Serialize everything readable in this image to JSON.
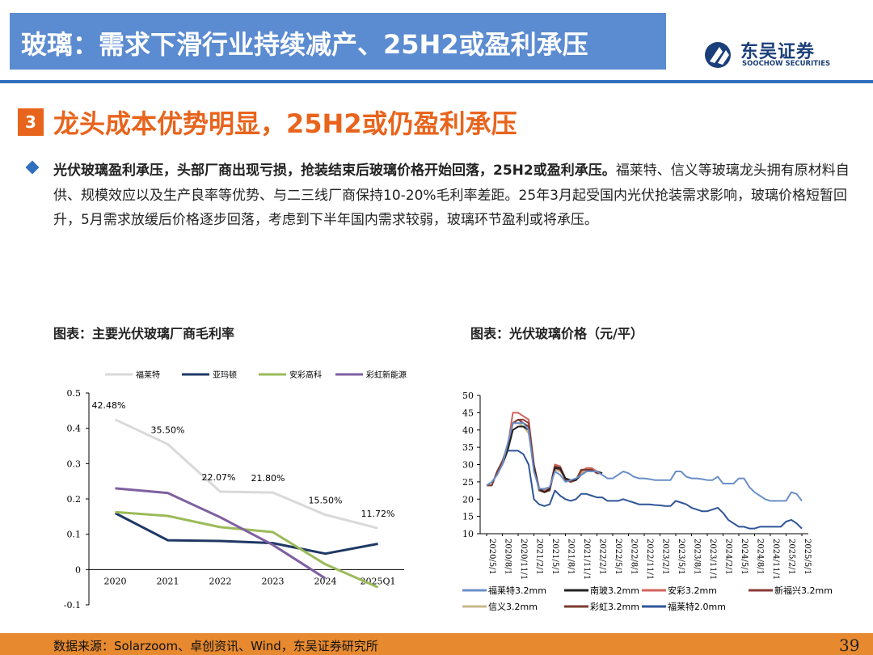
{
  "header": {
    "title": "玻璃：需求下滑行业持续减产、25H2或盈利承压",
    "logo_cn": "东吴证券",
    "logo_en": "SOOCHOW SECURITIES"
  },
  "section": {
    "number": "3",
    "title": "龙头成本优势明显，25H2或仍盈利承压"
  },
  "body": {
    "bold_text": "光伏玻璃盈利承压，头部厂商出现亏损，抢装结束后玻璃价格开始回落，25H2或盈利承压。",
    "normal_text": "福莱特、信义等玻璃龙头拥有原材料自供、规模效应以及生产良率等优势、与二三线厂商保持10-20%毛利率差距。25年3月起受国内光伏抢装需求影响，玻璃价格短暂回升，5月需求放缓后价格逐步回落，考虑到下半年国内需求较弱，玻璃环节盈利或将承压。"
  },
  "charts": {
    "left_caption": "图表：主要光伏玻璃厂商毛利率",
    "right_caption": "图表：光伏玻璃价格（元/平）"
  },
  "footer": {
    "source": "数据来源：Solarzoom、卓创资讯、Wind，东吴证券研究所",
    "page": "39"
  },
  "colors": {
    "title_bar": "#5b8bd0",
    "accent_orange": "#e8641c",
    "rule_blue": "#2f6fbe",
    "bottom_bar": "#e6892f"
  },
  "chart_data": [
    {
      "type": "line",
      "title": "图表：主要光伏玻璃厂商毛利率",
      "categories": [
        "2020",
        "2021",
        "2022",
        "2023",
        "2024",
        "2025Q1"
      ],
      "ylim": [
        -0.1,
        0.5
      ],
      "yticks": [
        "-0.1",
        "0",
        "0.1",
        "0.2",
        "0.3",
        "0.4",
        "0.5"
      ],
      "legend_position": "top",
      "series": [
        {
          "name": "福莱特",
          "color": "#d9d9d9",
          "values": [
            0.4248,
            0.355,
            0.2207,
            0.218,
            0.155,
            0.1172
          ],
          "labels": [
            "42.48%",
            "35.50%",
            "22.07%",
            "21.80%",
            "15.50%",
            "11.72%"
          ]
        },
        {
          "name": "亚玛顿",
          "color": "#1f3864",
          "values": [
            0.16,
            0.083,
            0.081,
            0.075,
            0.045,
            0.073
          ]
        },
        {
          "name": "安彩高科",
          "color": "#9bbb59",
          "values": [
            0.163,
            0.152,
            0.12,
            0.106,
            0.015,
            -0.05
          ]
        },
        {
          "name": "彩虹新能源",
          "color": "#7f5fa0",
          "values": [
            0.23,
            0.217,
            0.148,
            0.07,
            -0.025,
            null
          ]
        }
      ]
    },
    {
      "type": "line",
      "title": "图表：光伏玻璃价格（元/平）",
      "ylim": [
        10,
        50
      ],
      "yticks": [
        "10",
        "15",
        "20",
        "25",
        "30",
        "35",
        "40",
        "45",
        "50"
      ],
      "x_tick_labels": [
        "2020/5/1",
        "2020/8/1",
        "2020/11/1",
        "2021/2/1",
        "2021/5/1",
        "2021/8/1",
        "2021/11/1",
        "2022/2/1",
        "2022/5/1",
        "2022/8/1",
        "2022/11/1",
        "2023/2/1",
        "2023/5/1",
        "2023/8/1",
        "2023/11/1",
        "2024/2/1",
        "2024/5/1",
        "2024/8/1",
        "2024/11/1",
        "2025/2/1",
        "2025/5/1"
      ],
      "legend_position": "bottom",
      "series": [
        {
          "name": "福莱特3.2mm",
          "color": "#6a8fc9",
          "values": [
            24,
            25,
            27,
            30,
            36,
            42,
            42,
            42,
            40,
            28,
            23,
            23,
            23.5,
            28,
            27,
            25,
            25.5,
            26,
            27,
            28,
            28,
            28,
            27,
            26,
            26,
            27,
            28,
            27.5,
            26.5,
            26,
            26,
            25.8,
            25.5,
            25.5,
            25.5,
            25.5,
            28,
            28,
            26.5,
            26,
            26,
            25.8,
            25.5,
            25.5,
            26.5,
            24.5,
            24.5,
            24.5,
            26,
            26,
            23.5,
            22,
            21,
            20,
            19.5,
            19.5,
            19.5,
            19.5,
            22,
            21.5,
            19.5
          ]
        },
        {
          "name": "南玻3.2mm",
          "color": "#222222",
          "values": [
            null,
            null,
            null,
            30,
            34,
            40,
            41,
            41,
            40,
            29,
            23,
            22,
            23,
            29,
            29,
            26,
            25.5,
            25.5,
            27,
            28,
            28,
            28,
            27.5,
            null,
            null,
            null,
            null,
            null,
            null,
            null,
            null,
            null,
            null,
            null,
            null,
            null,
            null,
            null,
            null,
            null,
            null,
            null,
            null,
            null,
            null,
            null,
            null,
            null,
            null,
            null,
            null,
            null,
            null,
            null,
            null,
            null,
            null,
            null,
            null,
            null,
            null
          ]
        },
        {
          "name": "安彩3.2mm",
          "color": "#d0645c",
          "values": [
            null,
            null,
            null,
            30,
            35,
            45,
            45,
            44,
            43,
            30,
            23,
            22.5,
            23,
            30,
            29.5,
            26,
            25,
            25.5,
            28,
            29,
            29,
            28,
            27.5,
            null,
            null,
            null,
            null,
            null,
            null,
            null,
            null,
            null,
            null,
            null,
            null,
            null,
            null,
            null,
            null,
            null,
            null,
            null,
            null,
            null,
            null,
            null,
            null,
            null,
            null,
            null,
            null,
            null,
            null,
            null,
            null,
            null,
            null,
            null,
            null,
            null,
            null
          ]
        },
        {
          "name": "新福兴3.2mm",
          "color": "#8b3a3a",
          "values": [
            24,
            24,
            28,
            30,
            35,
            42,
            43,
            43,
            42,
            30,
            23,
            22,
            22.5,
            29,
            28.5,
            26,
            25,
            25.5,
            28.5,
            28.5,
            28.5,
            27.5,
            27.5,
            null,
            null,
            null,
            null,
            null,
            null,
            null,
            null,
            null,
            null,
            null,
            null,
            null,
            null,
            null,
            null,
            null,
            null,
            null,
            null,
            null,
            null,
            null,
            null,
            null,
            null,
            null,
            null,
            null,
            null,
            null,
            null,
            null,
            null,
            null,
            null,
            null,
            null
          ]
        },
        {
          "name": "信义3.2mm",
          "color": "#c9b98b",
          "values": [
            24,
            25,
            27,
            31,
            36,
            42,
            42,
            41,
            39,
            29,
            23,
            22.5,
            23,
            28.5,
            28,
            26,
            25,
            25.5,
            27.5,
            28.5,
            28.5,
            28,
            27.5,
            null,
            null,
            null,
            null,
            null,
            null,
            null,
            null,
            null,
            null,
            null,
            null,
            null,
            null,
            null,
            null,
            null,
            null,
            null,
            null,
            null,
            null,
            null,
            null,
            null,
            null,
            null,
            null,
            null,
            null,
            null,
            null,
            null,
            null,
            null,
            null,
            null,
            null
          ]
        },
        {
          "name": "彩虹3.2mm",
          "color": "#7a3b2e",
          "values": [
            24,
            24,
            28,
            31,
            35,
            42,
            43,
            42,
            41,
            29,
            22.5,
            22,
            22.5,
            29.5,
            29,
            25.5,
            25,
            25.5,
            28.5,
            28.5,
            28.5,
            27.5,
            27.5,
            null,
            null,
            null,
            null,
            null,
            null,
            null,
            null,
            null,
            null,
            null,
            null,
            null,
            null,
            null,
            null,
            null,
            null,
            null,
            null,
            null,
            null,
            null,
            null,
            null,
            null,
            null,
            null,
            null,
            null,
            null,
            null,
            null,
            null,
            null,
            null,
            null,
            null
          ]
        },
        {
          "name": "福莱特2.0mm",
          "color": "#2f5597",
          "values": [
            null,
            null,
            null,
            null,
            34,
            34,
            34,
            33,
            30,
            20,
            18.5,
            18,
            18.5,
            22.5,
            21,
            20,
            19.5,
            20,
            21.5,
            21.5,
            21,
            20.5,
            20.5,
            19.5,
            19.5,
            19.5,
            20,
            19.5,
            19,
            18.5,
            18.5,
            18.5,
            18.3,
            18.2,
            18,
            18,
            19.5,
            19,
            18.5,
            17.5,
            17,
            16.5,
            16.5,
            17,
            17.5,
            16,
            14,
            13,
            12,
            12,
            11.5,
            11.5,
            12,
            12,
            12,
            12,
            12,
            13.5,
            14,
            13,
            11.5
          ]
        }
      ]
    }
  ]
}
